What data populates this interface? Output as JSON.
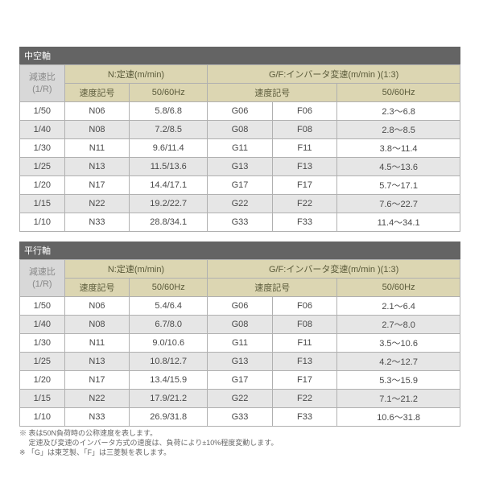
{
  "sections": [
    {
      "title": "中空軸",
      "headers": {
        "ratio_l1": "減速比",
        "ratio_l2": "(1/R)",
        "group_n": "N:定速(m/min)",
        "group_gf": "G/F:インバータ変速(m/min )(1:3)",
        "speed_code": "速度記号",
        "freq": "50/60Hz"
      },
      "rows": [
        {
          "ratio": "1/50",
          "n": "N06",
          "nhz": "5.8/6.8",
          "g": "G06",
          "f": "F06",
          "gfhz": "2.3～6.8",
          "alt": false
        },
        {
          "ratio": "1/40",
          "n": "N08",
          "nhz": "7.2/8.5",
          "g": "G08",
          "f": "F08",
          "gfhz": "2.8～8.5",
          "alt": true
        },
        {
          "ratio": "1/30",
          "n": "N11",
          "nhz": "9.6/11.4",
          "g": "G11",
          "f": "F11",
          "gfhz": "3.8～11.4",
          "alt": false
        },
        {
          "ratio": "1/25",
          "n": "N13",
          "nhz": "11.5/13.6",
          "g": "G13",
          "f": "F13",
          "gfhz": "4.5～13.6",
          "alt": true
        },
        {
          "ratio": "1/20",
          "n": "N17",
          "nhz": "14.4/17.1",
          "g": "G17",
          "f": "F17",
          "gfhz": "5.7～17.1",
          "alt": false
        },
        {
          "ratio": "1/15",
          "n": "N22",
          "nhz": "19.2/22.7",
          "g": "G22",
          "f": "F22",
          "gfhz": "7.6～22.7",
          "alt": true
        },
        {
          "ratio": "1/10",
          "n": "N33",
          "nhz": "28.8/34.1",
          "g": "G33",
          "f": "F33",
          "gfhz": "11.4～34.1",
          "alt": false
        }
      ]
    },
    {
      "title": "平行軸",
      "headers": {
        "ratio_l1": "減速比",
        "ratio_l2": "(1/R)",
        "group_n": "N:定速(m/min)",
        "group_gf": "G/F:インバータ変速(m/min )(1:3)",
        "speed_code": "速度記号",
        "freq": "50/60Hz"
      },
      "rows": [
        {
          "ratio": "1/50",
          "n": "N06",
          "nhz": "5.4/6.4",
          "g": "G06",
          "f": "F06",
          "gfhz": "2.1～6.4",
          "alt": false
        },
        {
          "ratio": "1/40",
          "n": "N08",
          "nhz": "6.7/8.0",
          "g": "G08",
          "f": "F08",
          "gfhz": "2.7～8.0",
          "alt": true
        },
        {
          "ratio": "1/30",
          "n": "N11",
          "nhz": "9.0/10.6",
          "g": "G11",
          "f": "F11",
          "gfhz": "3.5～10.6",
          "alt": false
        },
        {
          "ratio": "1/25",
          "n": "N13",
          "nhz": "10.8/12.7",
          "g": "G13",
          "f": "F13",
          "gfhz": "4.2～12.7",
          "alt": true
        },
        {
          "ratio": "1/20",
          "n": "N17",
          "nhz": "13.4/15.9",
          "g": "G17",
          "f": "F17",
          "gfhz": "5.3～15.9",
          "alt": false
        },
        {
          "ratio": "1/15",
          "n": "N22",
          "nhz": "17.9/21.2",
          "g": "G22",
          "f": "F22",
          "gfhz": "7.1～21.2",
          "alt": true
        },
        {
          "ratio": "1/10",
          "n": "N33",
          "nhz": "26.9/31.8",
          "g": "G33",
          "f": "F33",
          "gfhz": "10.6～31.8",
          "alt": false
        }
      ]
    }
  ],
  "notes": [
    "※ 表は50N負荷時の公称速度を表します。",
    "　 定速及び変速のインバータ方式の速度は、負荷により±10%程度変動します。",
    "※ 「G」は東芝製、「F」は三菱製を表します。"
  ]
}
